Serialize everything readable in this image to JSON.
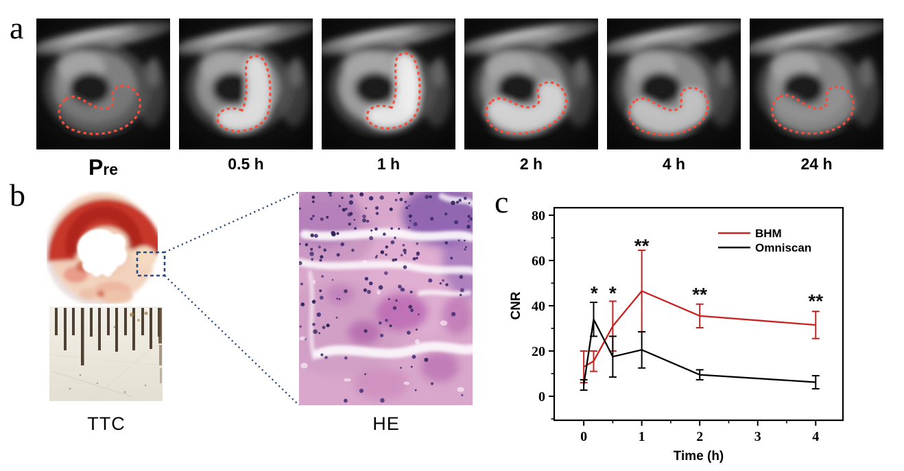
{
  "panel_a": {
    "label": "a",
    "timepoints": [
      {
        "label": "Pre"
      },
      {
        "label": "0.5 h"
      },
      {
        "label": "1 h"
      },
      {
        "label": "2 h"
      },
      {
        "label": "4 h"
      },
      {
        "label": "24 h"
      }
    ]
  },
  "panel_b": {
    "label": "b",
    "ttc_caption": "TTC",
    "he_caption": "HE"
  },
  "panel_c": {
    "label": "c"
  },
  "chart_data": {
    "type": "line",
    "title": "",
    "xlabel": "Time (h)",
    "ylabel": "CNR",
    "xlim": [
      -0.51,
      4.47
    ],
    "ylim": [
      -10.6,
      83.3
    ],
    "xticks": [
      0,
      1,
      2,
      3,
      4
    ],
    "xminorticks": [
      0.5,
      1.5,
      2.5,
      3.5
    ],
    "yticks": [
      0,
      20,
      40,
      60,
      80
    ],
    "yminorticks": [
      -10,
      10,
      30,
      50,
      70
    ],
    "grid": false,
    "legend_position": "top-right",
    "series": [
      {
        "name": "BHM",
        "color": "#c8211f",
        "x": [
          0,
          0.17,
          0.5,
          1,
          2,
          4
        ],
        "y": [
          13,
          15.5,
          31,
          46.5,
          35.5,
          31.5
        ],
        "yerr": [
          7,
          4.5,
          11,
          18,
          5.2,
          6
        ]
      },
      {
        "name": "Omniscan",
        "color": "#000000",
        "x": [
          0,
          0.17,
          0.5,
          1,
          2,
          4
        ],
        "y": [
          5,
          34,
          17.5,
          20.5,
          9.5,
          6.2
        ],
        "yerr": [
          2.3,
          7.5,
          9,
          8,
          2.2,
          2.9
        ]
      }
    ],
    "annotations": [
      {
        "text": "*",
        "x": 0.18,
        "y": 47.5
      },
      {
        "text": "*",
        "x": 0.5,
        "y": 47.5
      },
      {
        "text": "**",
        "x": 1,
        "y": 68.5
      },
      {
        "text": "**",
        "x": 2,
        "y": 47
      },
      {
        "text": "**",
        "x": 4,
        "y": 44
      }
    ],
    "colors": {
      "mri_roi_outline": "#f84b3a",
      "callout_blue": "#2c4a80"
    }
  }
}
